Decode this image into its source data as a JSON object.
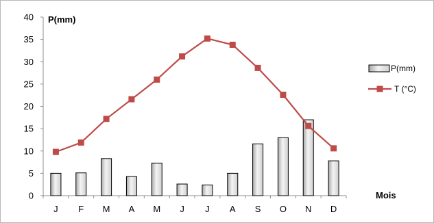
{
  "chart_data": {
    "type": "bar",
    "categories": [
      "J",
      "F",
      "M",
      "A",
      "M",
      "J",
      "J",
      "A",
      "S",
      "O",
      "N",
      "D"
    ],
    "series": [
      {
        "name": "P(mm)",
        "kind": "bar",
        "values": [
          5.0,
          5.1,
          8.3,
          4.3,
          7.3,
          2.6,
          2.4,
          5.0,
          11.6,
          13.0,
          17.0,
          7.8
        ]
      },
      {
        "name": "T (°C)",
        "kind": "line",
        "values": [
          9.8,
          11.9,
          17.2,
          21.6,
          26.0,
          31.2,
          35.2,
          33.8,
          28.6,
          22.6,
          15.6,
          10.6
        ]
      }
    ],
    "xlabel": "Mois",
    "ylabel": "P(mm)",
    "ylim": [
      0,
      40
    ],
    "yticks": [
      0,
      5,
      10,
      15,
      20,
      25,
      30,
      35,
      40
    ],
    "grid": false,
    "legend_position": "right",
    "colors": {
      "bar_fill_light": "#f4f4f4",
      "bar_fill_dark": "#a8a8a8",
      "bar_stroke": "#000000",
      "line": "#be4b48",
      "marker": "#be4b48"
    }
  }
}
